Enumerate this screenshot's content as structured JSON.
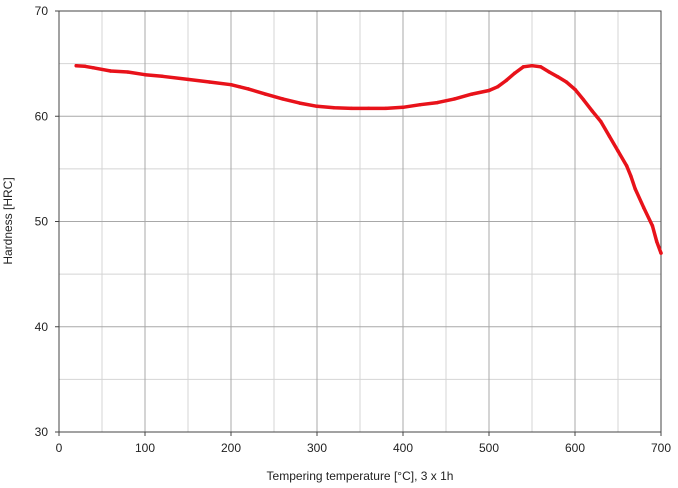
{
  "chart_data": {
    "type": "line",
    "title": "",
    "xlabel": "Tempering temperature [°C], 3 x 1h",
    "ylabel": "Hardness [HRC]",
    "xlim": [
      0,
      700
    ],
    "ylim": [
      30,
      70
    ],
    "x_ticks": [
      0,
      100,
      200,
      300,
      400,
      500,
      600,
      700
    ],
    "y_ticks": [
      30,
      40,
      50,
      60,
      70
    ],
    "x_minor_step": 50,
    "y_minor_step": 5,
    "grid": true,
    "legend": "none",
    "series": [
      {
        "color": "#e8121a",
        "x": [
          20,
          30,
          40,
          60,
          80,
          100,
          120,
          150,
          175,
          200,
          210,
          220,
          240,
          260,
          280,
          300,
          320,
          340,
          360,
          380,
          400,
          420,
          440,
          460,
          480,
          500,
          510,
          520,
          530,
          540,
          550,
          560,
          570,
          580,
          590,
          600,
          610,
          620,
          630,
          640,
          650,
          660,
          665,
          670,
          680,
          690,
          695,
          700
        ],
        "y": [
          64.8,
          64.75,
          64.6,
          64.3,
          64.2,
          63.95,
          63.8,
          63.5,
          63.25,
          63.0,
          62.8,
          62.6,
          62.1,
          61.65,
          61.25,
          60.95,
          60.8,
          60.75,
          60.75,
          60.75,
          60.85,
          61.1,
          61.3,
          61.65,
          62.1,
          62.45,
          62.8,
          63.4,
          64.1,
          64.7,
          64.8,
          64.7,
          64.2,
          63.75,
          63.25,
          62.55,
          61.55,
          60.5,
          59.5,
          58.1,
          56.7,
          55.3,
          54.3,
          53.1,
          51.3,
          49.6,
          48.1,
          47.0
        ]
      }
    ]
  }
}
